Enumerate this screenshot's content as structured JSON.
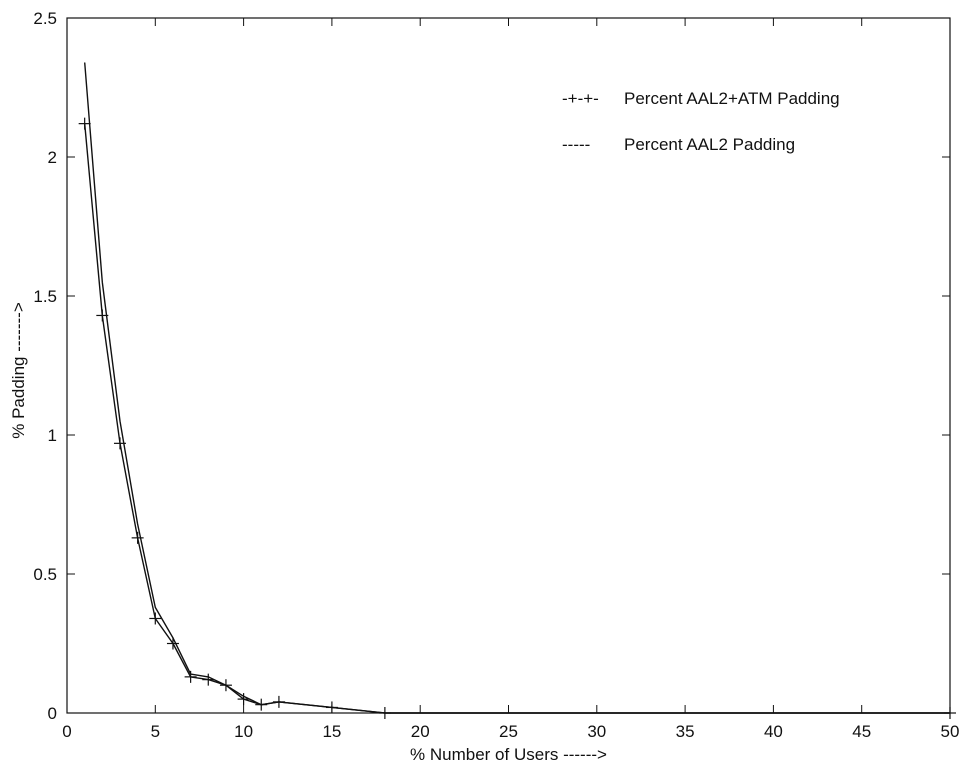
{
  "chart_data": {
    "type": "line",
    "title": "",
    "xlabel": "% Number of Users ------>",
    "ylabel": "% Padding ------->",
    "xlim": [
      0,
      50
    ],
    "ylim": [
      0,
      2.5
    ],
    "xticks": [
      "0",
      "5",
      "10",
      "15",
      "20",
      "25",
      "30",
      "35",
      "40",
      "45",
      "50"
    ],
    "yticks": [
      "0",
      "0.5",
      "1",
      "1.5",
      "2",
      "2.5"
    ],
    "grid": false,
    "legend_position": "top-right",
    "series": [
      {
        "name": "Percent AAL2+ATM Padding",
        "style": "solid-plus-markers",
        "color": "#111111",
        "x": [
          1,
          2,
          3,
          4,
          5,
          6,
          7,
          8,
          9,
          10,
          11,
          12,
          15,
          18,
          50
        ],
        "y": [
          2.12,
          1.43,
          0.97,
          0.63,
          0.34,
          0.25,
          0.13,
          0.12,
          0.1,
          0.05,
          0.03,
          0.04,
          0.02,
          0.0,
          0.0
        ]
      },
      {
        "name": "Percent AAL2 Padding",
        "style": "solid",
        "color": "#111111",
        "x": [
          1,
          2,
          3,
          4,
          5,
          6,
          7,
          8,
          9,
          10,
          11,
          12,
          15,
          18,
          50
        ],
        "y": [
          2.34,
          1.55,
          1.05,
          0.68,
          0.38,
          0.27,
          0.14,
          0.13,
          0.1,
          0.06,
          0.03,
          0.04,
          0.02,
          0.0,
          0.0
        ]
      }
    ],
    "legend_samples": {
      "plus": "-+-+-",
      "dash": "-----"
    }
  }
}
